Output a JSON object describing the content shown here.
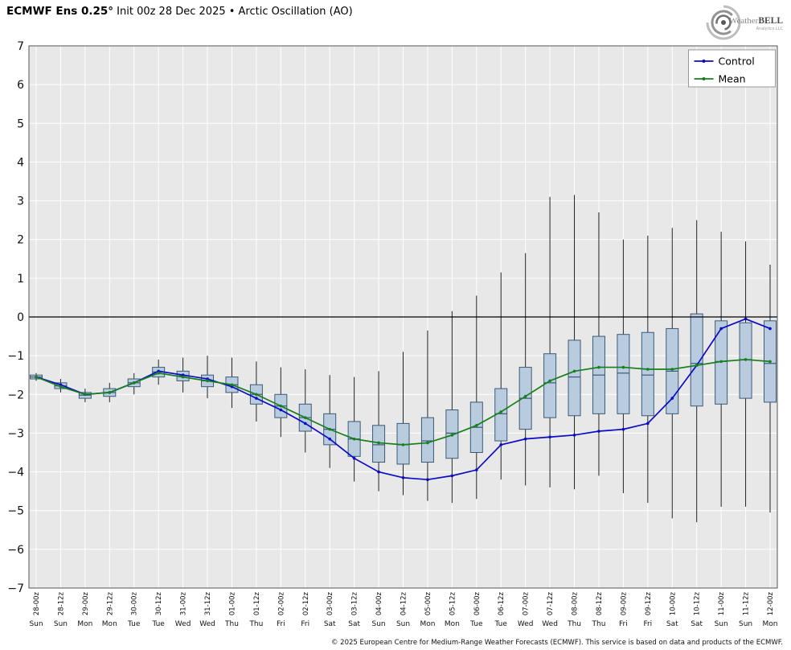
{
  "header": {
    "title_bold": "ECMWF Ens 0.25°",
    "title_rest": " Init 00z 28 Dec 2025 • Arctic Oscillation (AO)"
  },
  "logo": {
    "brand_weather": "Weather",
    "brand_bell": "BELL",
    "sub": "Analytics LLC"
  },
  "footer": {
    "copyright": "© 2025 European Centre for Medium-Range Weather Forecasts (ECMWF). This service is based on data and products of the ECMWF."
  },
  "chart_data": {
    "type": "box",
    "title": "ECMWF Ens 0.25° Init 00z 28 Dec 2025 • Arctic Oscillation (AO)",
    "ylabel": "",
    "ylim": [
      -7,
      7
    ],
    "yticks": [
      7,
      6,
      5,
      4,
      3,
      2,
      1,
      0,
      -1,
      -2,
      -3,
      -4,
      -5,
      -6,
      -7
    ],
    "grid": true,
    "plot_bg": "#e8e8e8",
    "grid_color": "#ffffff",
    "zero_line_value": 0,
    "legend_position": "upper right",
    "x_labels": [
      "28-00z",
      "28-12z",
      "29-00z",
      "29-12z",
      "30-00z",
      "30-12z",
      "31-00z",
      "31-12z",
      "01-00z",
      "01-12z",
      "02-00z",
      "02-12z",
      "03-00z",
      "03-12z",
      "04-00z",
      "04-12z",
      "05-00z",
      "05-12z",
      "06-00z",
      "06-12z",
      "07-00z",
      "07-12z",
      "08-00z",
      "08-12z",
      "09-00z",
      "09-12z",
      "10-00z",
      "10-12z",
      "11-00z",
      "11-12z",
      "12-00z"
    ],
    "day_labels": [
      "Sun",
      "Sun",
      "Mon",
      "Mon",
      "Tue",
      "Tue",
      "Wed",
      "Wed",
      "Thu",
      "Thu",
      "Fri",
      "Fri",
      "Sat",
      "Sat",
      "Sun",
      "Sun",
      "Mon",
      "Mon",
      "Tue",
      "Tue",
      "Wed",
      "Wed",
      "Thu",
      "Thu",
      "Fri",
      "Fri",
      "Sat",
      "Sat",
      "Sun",
      "Sun",
      "Mon"
    ],
    "series": [
      {
        "name": "Control",
        "color": "#0b0bc4",
        "values": [
          -1.55,
          -1.75,
          -2.0,
          -1.95,
          -1.7,
          -1.4,
          -1.5,
          -1.6,
          -1.8,
          -2.1,
          -2.4,
          -2.75,
          -3.15,
          -3.65,
          -4.0,
          -4.15,
          -4.2,
          -4.1,
          -3.95,
          -3.3,
          -3.15,
          -3.1,
          -3.05,
          -2.95,
          -2.9,
          -2.75,
          -2.1,
          -1.25,
          -0.3,
          -0.05,
          -0.3
        ]
      },
      {
        "name": "Mean",
        "color": "#15801c",
        "values": [
          -1.55,
          -1.8,
          -2.0,
          -1.95,
          -1.7,
          -1.45,
          -1.55,
          -1.65,
          -1.75,
          -2.0,
          -2.3,
          -2.6,
          -2.9,
          -3.15,
          -3.25,
          -3.3,
          -3.25,
          -3.05,
          -2.8,
          -2.45,
          -2.05,
          -1.65,
          -1.4,
          -1.3,
          -1.3,
          -1.35,
          -1.35,
          -1.25,
          -1.15,
          -1.1,
          -1.15
        ]
      }
    ],
    "boxes": {
      "fill": "#b9cbdf",
      "edge": "#3c5a74",
      "median_color": "#3c5a74",
      "whisker_color": "#222222",
      "q1": [
        -1.6,
        -1.85,
        -2.1,
        -2.05,
        -1.8,
        -1.55,
        -1.65,
        -1.8,
        -1.95,
        -2.25,
        -2.6,
        -2.95,
        -3.3,
        -3.6,
        -3.75,
        -3.8,
        -3.75,
        -3.65,
        -3.5,
        -3.2,
        -2.9,
        -2.6,
        -2.55,
        -2.5,
        -2.5,
        -2.55,
        -2.5,
        -2.3,
        -2.25,
        -2.1,
        -2.2
      ],
      "median": [
        -1.55,
        -1.78,
        -2.02,
        -1.95,
        -1.7,
        -1.42,
        -1.52,
        -1.65,
        -1.75,
        -2.0,
        -2.3,
        -2.6,
        -2.9,
        -3.15,
        -3.3,
        -3.3,
        -3.2,
        -3.0,
        -2.85,
        -2.5,
        -2.1,
        -1.7,
        -1.55,
        -1.5,
        -1.45,
        -1.5,
        -1.4,
        -1.2,
        -1.15,
        -1.1,
        -1.2
      ],
      "q3": [
        -1.5,
        -1.7,
        -1.95,
        -1.85,
        -1.6,
        -1.3,
        -1.4,
        -1.5,
        -1.55,
        -1.75,
        -2.0,
        -2.25,
        -2.5,
        -2.7,
        -2.8,
        -2.75,
        -2.6,
        -2.4,
        -2.2,
        -1.85,
        -1.3,
        -0.95,
        -0.6,
        -0.5,
        -0.45,
        -0.4,
        -0.3,
        0.08,
        -0.1,
        -0.15,
        -0.1
      ],
      "whisker_lo": [
        -1.65,
        -1.95,
        -2.2,
        -2.2,
        -2.0,
        -1.75,
        -1.95,
        -2.1,
        -2.35,
        -2.7,
        -3.1,
        -3.5,
        -3.9,
        -4.25,
        -4.5,
        -4.6,
        -4.75,
        -4.8,
        -4.7,
        -4.2,
        -4.35,
        -4.4,
        -4.45,
        -4.1,
        -4.55,
        -4.8,
        -5.2,
        -5.3,
        -4.9,
        -4.9,
        -5.05
      ],
      "whisker_hi": [
        -1.45,
        -1.6,
        -1.85,
        -1.7,
        -1.45,
        -1.1,
        -1.05,
        -1.0,
        -1.05,
        -1.15,
        -1.3,
        -1.35,
        -1.5,
        -1.55,
        -1.4,
        -0.9,
        -0.35,
        0.15,
        0.55,
        1.15,
        1.65,
        3.1,
        3.15,
        2.7,
        2.0,
        2.1,
        2.3,
        2.5,
        2.2,
        1.95,
        1.35
      ]
    }
  }
}
